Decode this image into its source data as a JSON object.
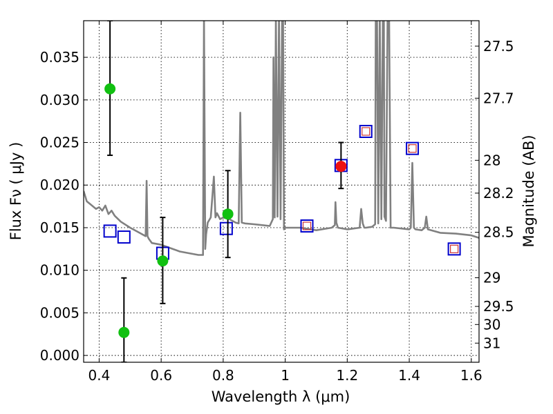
{
  "chart_data": {
    "type": "scatter",
    "title": "",
    "xlabel": "Wavelength  λ (μm)",
    "ylabel": "Flux  Fν  ( μJy )",
    "ylabel_right": "Magnitude (AB)",
    "xlim": [
      0.35,
      1.625
    ],
    "ylim": [
      -0.0008,
      0.0393
    ],
    "grid": true,
    "x_ticks": [
      0.4,
      0.6,
      0.8,
      1.0,
      1.2,
      1.4,
      1.6
    ],
    "x_tick_labels": [
      "0.4",
      "0.6",
      "0.8",
      "1",
      "1.2",
      "1.4",
      "1.6"
    ],
    "y_ticks": [
      0.0,
      0.005,
      0.01,
      0.015,
      0.02,
      0.025,
      0.03,
      0.035
    ],
    "y_tick_labels": [
      "0.000",
      "0.005",
      "0.010",
      "0.015",
      "0.020",
      "0.025",
      "0.030",
      "0.035"
    ],
    "right_ticks": [
      {
        "mag": 27.5,
        "label": "27.5"
      },
      {
        "mag": 27.7,
        "label": "27.7"
      },
      {
        "mag": 28,
        "label": "28"
      },
      {
        "mag": 28.2,
        "label": "28.2"
      },
      {
        "mag": 28.5,
        "label": "28.5"
      },
      {
        "mag": 29,
        "label": "29"
      },
      {
        "mag": 29.5,
        "label": "29.5"
      },
      {
        "mag": 30,
        "label": "30"
      },
      {
        "mag": 31,
        "label": "31"
      }
    ],
    "colors": {
      "spectrum": "#808080",
      "model_square": "#0000cc",
      "detection_square": "#cc3333",
      "observed_point": "#11c011",
      "red_point": "#ee1111",
      "error_bar": "#000000"
    },
    "series": [
      {
        "type": "line",
        "x": [
          0.35,
          0.36,
          0.37,
          0.38,
          0.39,
          0.4,
          0.41,
          0.42,
          0.43,
          0.44,
          0.45,
          0.47,
          0.5,
          0.53,
          0.55,
          0.553,
          0.556,
          0.56,
          0.57,
          0.6,
          0.63,
          0.66,
          0.69,
          0.72,
          0.735,
          0.738,
          0.742,
          0.745,
          0.75,
          0.76,
          0.77,
          0.775,
          0.78,
          0.79,
          0.8,
          0.82,
          0.84,
          0.85,
          0.855,
          0.86,
          0.87,
          0.9,
          0.95,
          0.96,
          0.962,
          0.966,
          0.97,
          0.975,
          0.98,
          0.985,
          0.99,
          0.993,
          0.996,
          1.0,
          1.05,
          1.1,
          1.15,
          1.16,
          1.162,
          1.165,
          1.17,
          1.2,
          1.24,
          1.245,
          1.25,
          1.255,
          1.26,
          1.28,
          1.29,
          1.292,
          1.296,
          1.3,
          1.305,
          1.31,
          1.315,
          1.318,
          1.32,
          1.325,
          1.33,
          1.335,
          1.34,
          1.35,
          1.4,
          1.405,
          1.41,
          1.415,
          1.42,
          1.44,
          1.45,
          1.455,
          1.46,
          1.5,
          1.55,
          1.6,
          1.625
        ],
        "y": [
          0.0193,
          0.0181,
          0.0178,
          0.0175,
          0.0172,
          0.0174,
          0.017,
          0.0176,
          0.0166,
          0.017,
          0.0164,
          0.0157,
          0.015,
          0.0144,
          0.014,
          0.0205,
          0.014,
          0.0137,
          0.0132,
          0.013,
          0.0126,
          0.0122,
          0.012,
          0.0118,
          0.0118,
          0.04,
          0.0125,
          0.0142,
          0.0156,
          0.0162,
          0.021,
          0.0162,
          0.0167,
          0.016,
          0.0162,
          0.016,
          0.0156,
          0.0155,
          0.0285,
          0.0156,
          0.0155,
          0.0154,
          0.0152,
          0.016,
          0.035,
          0.0162,
          0.04,
          0.0163,
          0.04,
          0.016,
          0.04,
          0.04,
          0.0148,
          0.015,
          0.015,
          0.0147,
          0.015,
          0.0153,
          0.018,
          0.0156,
          0.015,
          0.0148,
          0.015,
          0.0172,
          0.0155,
          0.015,
          0.015,
          0.0151,
          0.0154,
          0.04,
          0.04,
          0.0155,
          0.04,
          0.016,
          0.04,
          0.04,
          0.0163,
          0.0158,
          0.04,
          0.04,
          0.015,
          0.015,
          0.0148,
          0.015,
          0.0226,
          0.015,
          0.0148,
          0.0147,
          0.015,
          0.0163,
          0.0148,
          0.0144,
          0.0143,
          0.0141,
          0.0138
        ]
      },
      {
        "type": "square",
        "x": [
          0.435,
          0.48,
          0.605,
          0.81,
          1.07,
          1.18,
          1.26,
          1.41,
          1.545
        ],
        "y": [
          0.0146,
          0.0139,
          0.012,
          0.0149,
          0.0152,
          0.0223,
          0.0263,
          0.0243,
          0.0125
        ]
      },
      {
        "type": "hollow_square",
        "x": [
          1.07,
          1.26,
          1.41,
          1.545
        ],
        "y": [
          0.0152,
          0.0263,
          0.0243,
          0.0125
        ]
      },
      {
        "type": "point",
        "x": [
          0.435,
          0.48,
          0.605,
          0.815
        ],
        "y": [
          0.0313,
          0.0027,
          0.0111,
          0.0166
        ],
        "yerr_low": [
          0.0235,
          -0.0008,
          0.0061,
          0.0115
        ],
        "yerr_high": [
          0.0393,
          0.0091,
          0.0162,
          0.0217
        ]
      },
      {
        "type": "point",
        "x": [
          1.18
        ],
        "y": [
          0.0222
        ],
        "yerr_low": [
          0.0196
        ],
        "yerr_high": [
          0.025
        ]
      }
    ]
  }
}
